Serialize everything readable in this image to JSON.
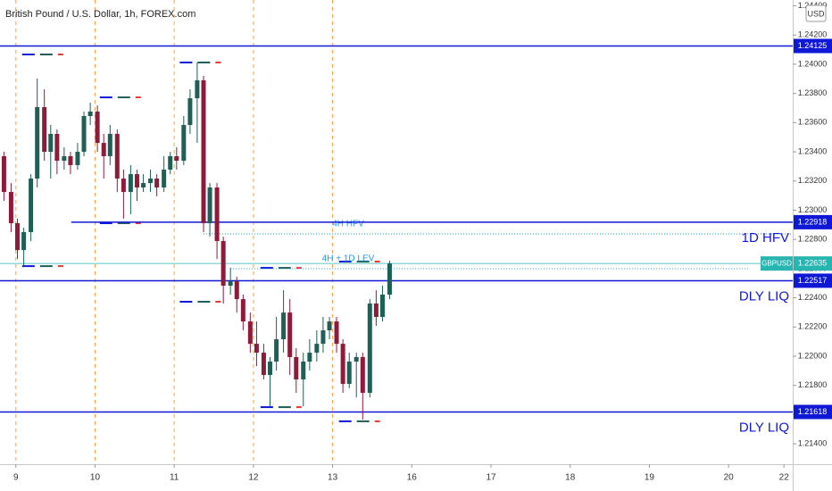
{
  "chart_data": {
    "type": "candlestick",
    "title": "British Pound / U.S. Dollar, 1h, FOREX.com",
    "currency": "USD",
    "x": [
      -0.15,
      -0.06,
      0.02,
      0.1,
      0.19,
      0.27,
      0.36,
      0.44,
      0.52,
      0.61,
      0.69,
      0.78,
      0.86,
      0.94,
      1.03,
      1.11,
      1.19,
      1.28,
      1.36,
      1.45,
      1.53,
      1.61,
      1.7,
      1.78,
      1.87,
      1.95,
      2.03,
      2.12,
      2.2,
      2.29,
      2.37,
      2.45,
      2.54,
      2.62,
      2.71,
      2.79,
      2.87,
      2.96,
      3.04,
      3.13,
      3.21,
      3.29,
      3.38,
      3.46,
      3.54,
      3.63,
      3.71,
      3.8,
      3.88,
      3.96,
      4.05,
      4.13,
      4.21,
      4.3,
      4.38,
      4.47,
      4.55,
      4.63,
      4.72
    ],
    "open": [
      1.2337,
      1.23125,
      1.22911,
      1.22727,
      1.2285,
      1.23217,
      1.23706,
      1.234,
      1.23523,
      1.23339,
      1.2337,
      1.23309,
      1.234,
      1.23645,
      1.23676,
      1.23461,
      1.2337,
      1.23523,
      1.23217,
      1.23125,
      1.23247,
      1.23156,
      1.23186,
      1.23217,
      1.23156,
      1.23278,
      1.2337,
      1.23339,
      1.23584,
      1.23767,
      1.2389,
      1.22911,
      1.23156,
      1.22789,
      1.22483,
      1.22513,
      1.22391,
      1.22238,
      1.22085,
      1.22024,
      1.21871,
      1.21963,
      1.22116,
      1.22299,
      1.21994,
      1.21841,
      1.21963,
      1.22024,
      1.22085,
      1.22177,
      1.22238,
      1.22085,
      1.2181,
      1.21963,
      1.21994,
      1.21749,
      1.22361,
      1.22269,
      1.22422
    ],
    "high": [
      1.234,
      1.23186,
      1.22942,
      1.2288,
      1.23247,
      1.23902,
      1.23828,
      1.23584,
      1.23553,
      1.23431,
      1.234,
      1.23461,
      1.23676,
      1.23737,
      1.23718,
      1.23523,
      1.23584,
      1.23553,
      1.23278,
      1.23309,
      1.23278,
      1.23247,
      1.23278,
      1.23247,
      1.2337,
      1.234,
      1.23431,
      1.23645,
      1.23828,
      1.24012,
      1.2392,
      1.23186,
      1.23186,
      1.22819,
      1.22605,
      1.22544,
      1.22422,
      1.22299,
      1.22238,
      1.22085,
      1.21994,
      1.22269,
      1.22452,
      1.22391,
      1.22055,
      1.22024,
      1.22116,
      1.22177,
      1.22269,
      1.22269,
      1.22269,
      1.22116,
      1.22024,
      1.22024,
      1.22024,
      1.22391,
      1.22452,
      1.22483,
      1.22654
    ],
    "low": [
      1.23064,
      1.2285,
      1.22666,
      1.22617,
      1.22789,
      1.23156,
      1.23339,
      1.23217,
      1.23247,
      1.23278,
      1.23247,
      1.23278,
      1.2337,
      1.23584,
      1.234,
      1.23217,
      1.23309,
      1.23125,
      1.22942,
      1.22972,
      1.23064,
      1.23125,
      1.23125,
      1.23095,
      1.23125,
      1.23247,
      1.23278,
      1.23309,
      1.23523,
      1.23461,
      1.2285,
      1.22819,
      1.22666,
      1.22361,
      1.22422,
      1.22299,
      1.22177,
      1.22024,
      1.21932,
      1.21841,
      1.21657,
      1.21902,
      1.22024,
      1.21871,
      1.21749,
      1.21657,
      1.21902,
      1.21963,
      1.22024,
      1.22116,
      1.22024,
      1.21749,
      1.2178,
      1.21718,
      1.21566,
      1.21718,
      1.22208,
      1.22238,
      1.22391
    ],
    "close": [
      1.23125,
      1.22911,
      1.22727,
      1.2285,
      1.23217,
      1.23706,
      1.234,
      1.23523,
      1.23339,
      1.2337,
      1.23309,
      1.234,
      1.23645,
      1.23676,
      1.23461,
      1.2337,
      1.23523,
      1.23217,
      1.23125,
      1.23247,
      1.23156,
      1.23186,
      1.23217,
      1.23156,
      1.23278,
      1.2337,
      1.23339,
      1.23584,
      1.23767,
      1.2389,
      1.22911,
      1.23156,
      1.22789,
      1.22483,
      1.22513,
      1.22391,
      1.22238,
      1.22085,
      1.22024,
      1.21871,
      1.21963,
      1.22116,
      1.22299,
      1.21994,
      1.21841,
      1.21963,
      1.22024,
      1.22085,
      1.22177,
      1.22238,
      1.22085,
      1.2181,
      1.21963,
      1.21994,
      1.21749,
      1.22361,
      1.22269,
      1.22422,
      1.22635
    ],
    "up_color": "#1f5f55",
    "down_color": "#8e1b3a",
    "xlim": [
      -0.2,
      9.81
    ],
    "ylim": [
      1.2126,
      1.2444
    ],
    "xticks": [
      {
        "value": 0,
        "label": "9"
      },
      {
        "value": 1,
        "label": "10"
      },
      {
        "value": 2,
        "label": "11"
      },
      {
        "value": 3,
        "label": "12"
      },
      {
        "value": 4,
        "label": "13"
      },
      {
        "value": 5,
        "label": "16"
      },
      {
        "value": 6,
        "label": "17"
      },
      {
        "value": 7,
        "label": "18"
      },
      {
        "value": 8,
        "label": "19"
      },
      {
        "value": 9,
        "label": "20"
      },
      {
        "value": 9.7,
        "label": "22"
      }
    ],
    "yticks": [
      {
        "value": 1.244,
        "label": "1.24400"
      },
      {
        "value": 1.242,
        "label": "1.24200"
      },
      {
        "value": 1.24,
        "label": "1.24000"
      },
      {
        "value": 1.238,
        "label": "1.23800"
      },
      {
        "value": 1.236,
        "label": "1.23600"
      },
      {
        "value": 1.234,
        "label": "1.23400"
      },
      {
        "value": 1.232,
        "label": "1.23200"
      },
      {
        "value": 1.23,
        "label": "1.23000"
      },
      {
        "value": 1.228,
        "label": "1.22800"
      },
      {
        "value": 1.226,
        "label": "1.22600"
      },
      {
        "value": 1.224,
        "label": "1.22400"
      },
      {
        "value": 1.222,
        "label": "1.22200"
      },
      {
        "value": 1.22,
        "label": "1.22000"
      },
      {
        "value": 1.218,
        "label": "1.21800"
      },
      {
        "value": 1.216,
        "label": "1.21600"
      },
      {
        "value": 1.214,
        "label": "1.21400"
      }
    ],
    "session_line_color": "#f5a35c",
    "level_color": "#1018d8",
    "levels": [
      {
        "value": 1.24125
      },
      {
        "value": 1.22918,
        "x_start": 0.7,
        "note": "1D HFV"
      },
      {
        "value": 1.22517,
        "note": "DLY LIQ"
      },
      {
        "value": 1.21618,
        "note": "DLY LIQ"
      }
    ],
    "dotted_color": "#2196f3",
    "dotted_levels": [
      {
        "value": 1.22838,
        "x_start": 2.37,
        "label": "4H HFV"
      },
      {
        "value": 1.22599,
        "x_start": 2.71,
        "x_end": 9.27,
        "label": "4H + 1D LEV"
      }
    ],
    "range_marks": [
      {
        "x": 0.08,
        "value": 1.24067
      },
      {
        "x": 2.07,
        "value": 1.24012
      },
      {
        "x": 1.06,
        "value": 1.23773
      },
      {
        "x": 1.06,
        "value": 1.22911
      },
      {
        "x": 0.08,
        "value": 1.22617
      },
      {
        "x": 3.09,
        "value": 1.22605
      },
      {
        "x": 2.07,
        "value": 1.22373
      },
      {
        "x": 3.09,
        "value": 1.21651
      },
      {
        "x": 4.08,
        "value": 1.21554
      },
      {
        "x": 4.08,
        "value": 1.22648
      }
    ],
    "last_price": {
      "symbol": "GBPUSD",
      "value": 1.22635,
      "color": "#26b5b0"
    }
  }
}
